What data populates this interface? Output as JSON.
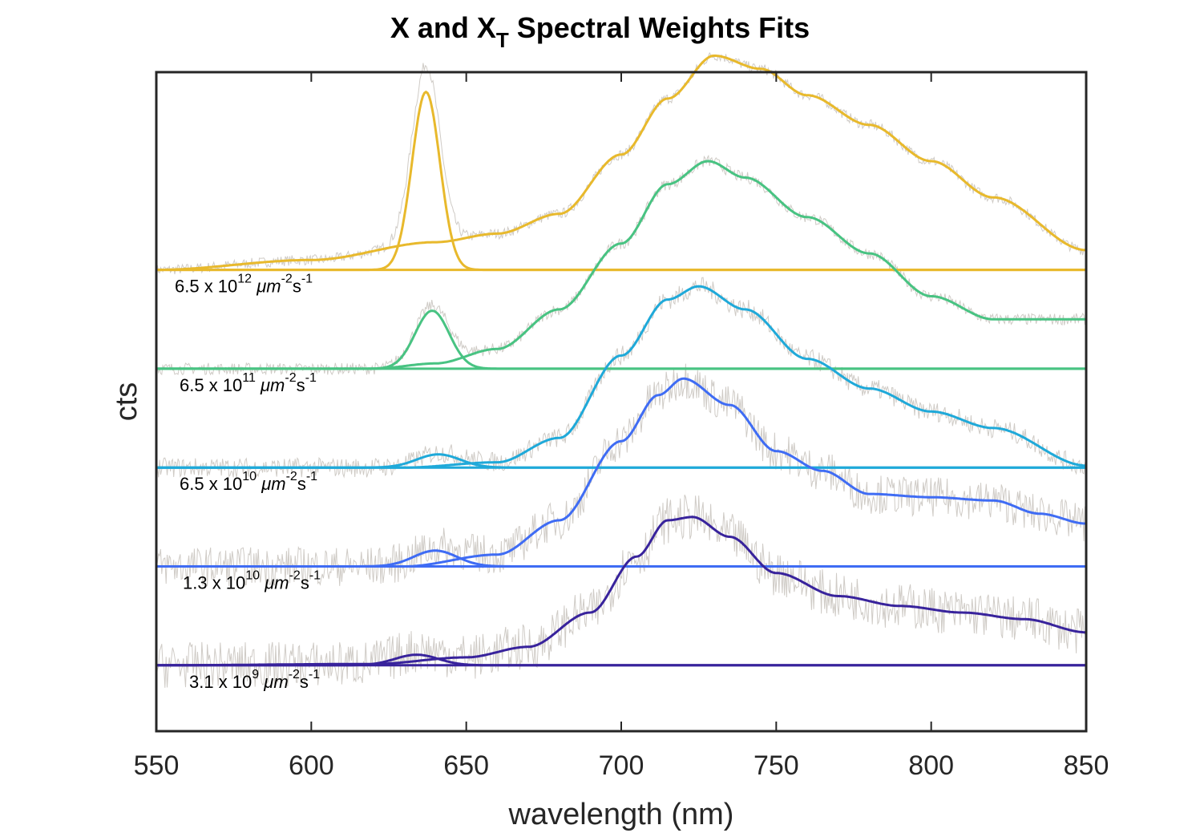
{
  "chart_data": {
    "type": "line",
    "title_main": "X and X",
    "title_sub": "T",
    "title_rest": " Spectral Weights Fits",
    "xlabel": "wavelength (nm)",
    "ylabel": "cts",
    "xlim": [
      550,
      850
    ],
    "ylim": [
      0,
      100
    ],
    "xticks": [
      550,
      600,
      650,
      700,
      750,
      800,
      850
    ],
    "grid": false,
    "data_color": "#cfcbc6",
    "series": [
      {
        "name": "6.5 x 10^12 um^-2 s^-1",
        "label_coef": "6.5 x 10",
        "label_exp": "12",
        "label_unit": "μm",
        "label_unit_exp1": "-2",
        "label_s": "s",
        "label_unit_exp2": "-1",
        "color": "#e8b92c",
        "offset": 70,
        "peak1": {
          "center": 637,
          "amplitude": 27,
          "width": 4.5
        },
        "broad": {
          "x": [
            550,
            600,
            640,
            660,
            680,
            700,
            715,
            730,
            745,
            760,
            780,
            800,
            820,
            850
          ],
          "y": [
            0,
            1.5,
            4.2,
            5.5,
            8.5,
            17.5,
            26,
            32.5,
            30.5,
            26.5,
            22,
            16.5,
            11,
            3
          ]
        },
        "noise": 0.8
      },
      {
        "name": "6.5 x 10^11 um^-2 s^-1",
        "label_coef": "6.5 x 10",
        "label_exp": "11",
        "label_unit": "μm",
        "label_unit_exp1": "-2",
        "label_s": "s",
        "label_unit_exp2": "-1",
        "color": "#48c382",
        "offset": 55,
        "peak1": {
          "center": 639,
          "amplitude": 8.8,
          "width": 5.5
        },
        "broad": {
          "x": [
            550,
            620,
            640,
            660,
            680,
            700,
            715,
            728,
            740,
            760,
            780,
            800,
            820,
            850
          ],
          "y": [
            0,
            0,
            0.8,
            3,
            9,
            19,
            28,
            31.5,
            29,
            23,
            17.5,
            11,
            7.5,
            7.5
          ]
        },
        "noise": 0.9
      },
      {
        "name": "6.5 x 10^10 um^-2 s^-1",
        "label_coef": "6.5 x 10",
        "label_exp": "10",
        "label_unit": "μm",
        "label_unit_exp1": "-2",
        "label_s": "s",
        "label_unit_exp2": "-1",
        "color": "#1fa9d9",
        "offset": 40,
        "peak1": {
          "center": 641,
          "amplitude": 2.0,
          "width": 7
        },
        "broad": {
          "x": [
            550,
            630,
            660,
            680,
            700,
            715,
            725,
            740,
            760,
            780,
            800,
            820,
            850
          ],
          "y": [
            0,
            0,
            0.8,
            4.5,
            17,
            25.5,
            27.5,
            24,
            16.5,
            12,
            8.5,
            6,
            0.3
          ]
        },
        "noise": 1.5
      },
      {
        "name": "1.3 x 10^10 um^-2 s^-1",
        "label_coef": "1.3 x 10",
        "label_exp": "10",
        "label_unit": "μm",
        "label_unit_exp1": "-2",
        "label_s": "s",
        "label_unit_exp2": "-1",
        "color": "#3f6cf4",
        "offset": 25,
        "peak1": {
          "center": 640,
          "amplitude": 2.4,
          "width": 7
        },
        "broad": {
          "x": [
            550,
            630,
            660,
            680,
            700,
            712,
            720,
            735,
            750,
            765,
            780,
            800,
            820,
            835,
            850
          ],
          "y": [
            0,
            0,
            1.8,
            7,
            19,
            26,
            28.5,
            24.5,
            17.5,
            14.5,
            11,
            10.5,
            10,
            8,
            6.5
          ]
        },
        "noise": 3.0
      },
      {
        "name": "3.1 x 10^9 um^-2 s^-1",
        "label_coef": "3.1 x 10",
        "label_exp": "9",
        "label_unit": "μm",
        "label_unit_exp1": "-2",
        "label_s": "s",
        "label_unit_exp2": "-1",
        "color": "#38239c",
        "offset": 10,
        "peak1": {
          "center": 634,
          "amplitude": 1.6,
          "width": 7
        },
        "broad": {
          "x": [
            550,
            620,
            650,
            670,
            690,
            705,
            715,
            723,
            735,
            750,
            770,
            790,
            810,
            830,
            850
          ],
          "y": [
            0,
            0.2,
            1.2,
            2.8,
            8,
            16.5,
            22,
            22.5,
            19.5,
            14,
            10.5,
            9,
            8,
            7,
            5
          ]
        },
        "noise": 3.5
      }
    ]
  }
}
